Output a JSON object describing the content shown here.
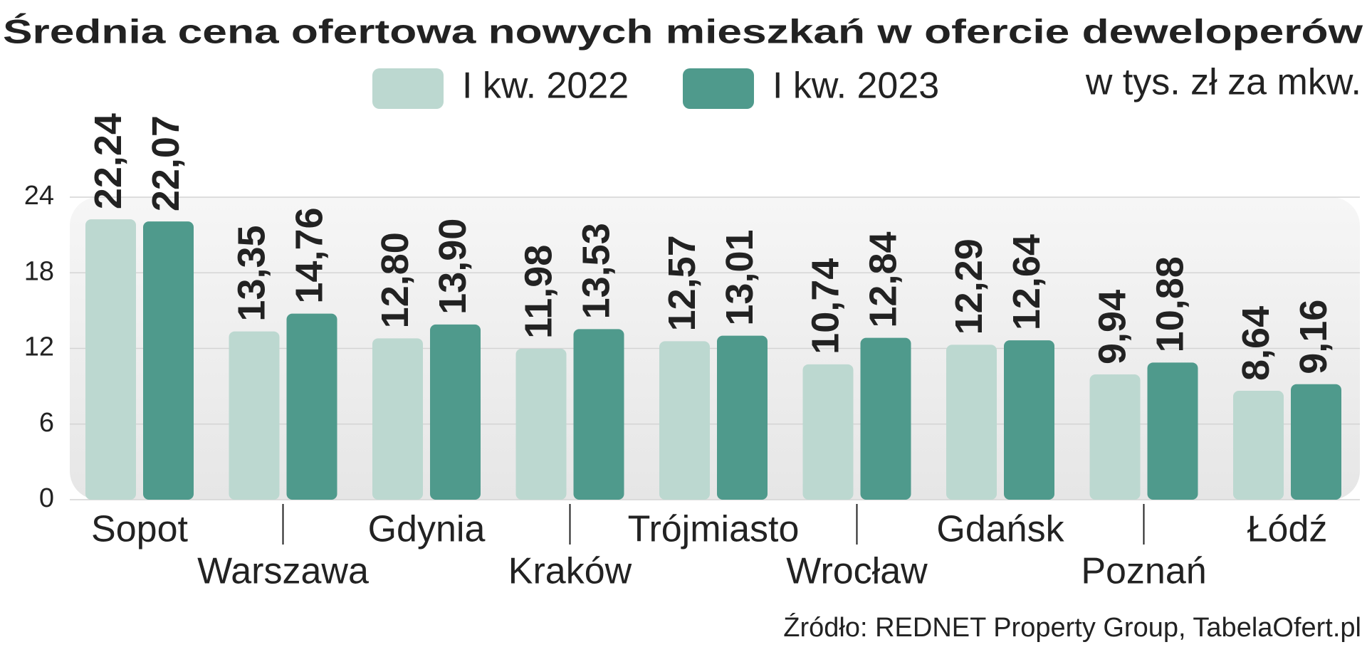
{
  "chart_data": {
    "type": "bar",
    "title": "Średnia cena ofertowa nowych mieszkań w ofercie deweloperów",
    "subtitle": "w tys. zł za mkw.",
    "source": "Źródło: REDNET Property Group, TabelaOfert.pl",
    "categories": [
      "Sopot",
      "Warszawa",
      "Gdynia",
      "Kraków",
      "Trójmiasto",
      "Wrocław",
      "Gdańsk",
      "Poznań",
      "Łódź"
    ],
    "series": [
      {
        "name": "I kw. 2022",
        "color": "#bcd8d0",
        "values": [
          22.24,
          13.35,
          12.8,
          11.98,
          12.57,
          10.74,
          12.29,
          9.94,
          8.64
        ],
        "value_labels": [
          "22,24",
          "13,35",
          "12,80",
          "11,98",
          "12,57",
          "10,74",
          "12,29",
          "9,94",
          "8,64"
        ]
      },
      {
        "name": "I kw. 2023",
        "color": "#4f9a8c",
        "values": [
          22.07,
          14.76,
          13.9,
          13.53,
          13.01,
          12.84,
          12.64,
          10.88,
          9.16
        ],
        "value_labels": [
          "22,07",
          "14,76",
          "13,90",
          "13,53",
          "13,01",
          "12,84",
          "12,64",
          "10,88",
          "9,16"
        ]
      }
    ],
    "ylim": [
      0,
      24
    ],
    "yticks": [
      0,
      6,
      12,
      18,
      24
    ],
    "grid": true
  }
}
